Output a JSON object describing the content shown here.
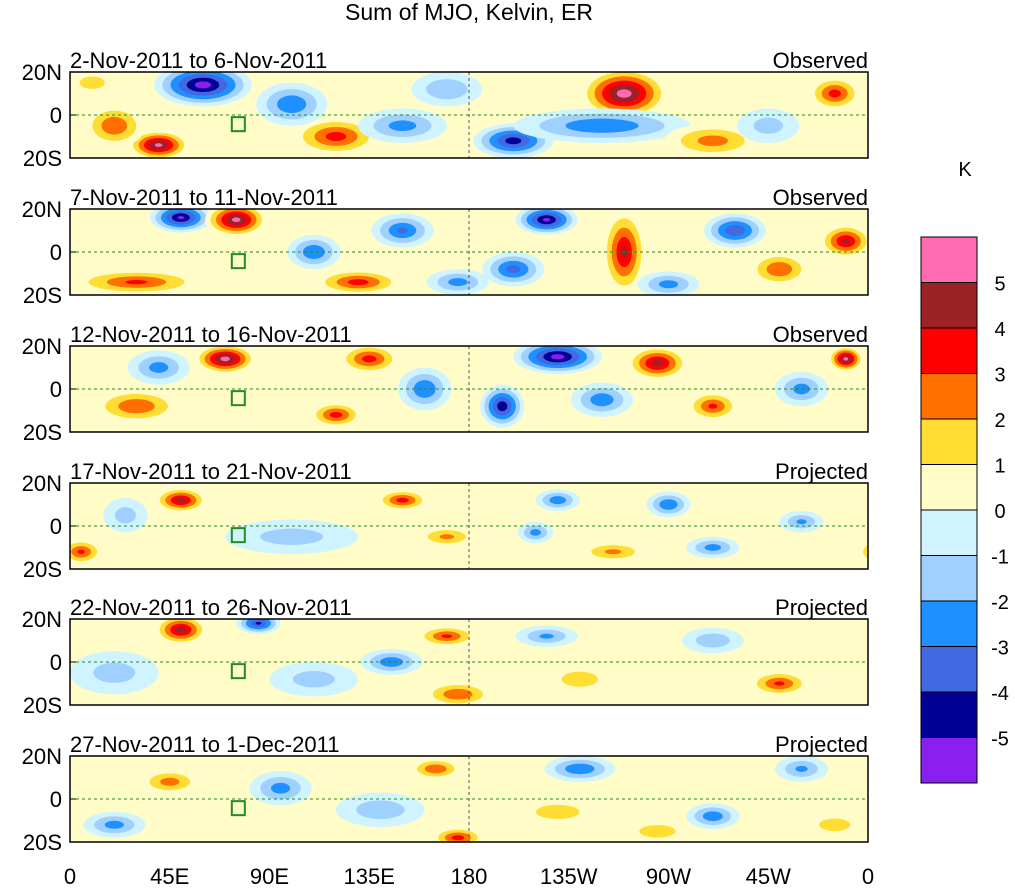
{
  "chart_data": {
    "type": "heatmap",
    "title": "Sum of MJO, Kelvin, ER",
    "colorbar": {
      "unit": "K",
      "levels": [
        "5",
        "4",
        "3",
        "2",
        "1",
        "0",
        "-1",
        "-2",
        "-3",
        "-4",
        "-5"
      ],
      "colors": [
        "#FF6CB4",
        "#9B2226",
        "#FF0000",
        "#FF7000",
        "#FFDD33",
        "#FFFCC8",
        "#D0F4FF",
        "#A0D0FF",
        "#1E90FF",
        "#4169E1",
        "#000096",
        "#8A1FF0"
      ]
    },
    "x_ticks": [
      "0",
      "45E",
      "90E",
      "135E",
      "180",
      "135W",
      "90W",
      "45W",
      "0"
    ],
    "y_ticks": [
      "20N",
      "0",
      "20S"
    ],
    "lon_range": [
      0,
      360
    ],
    "lat_range": [
      -20,
      20
    ],
    "panels": [
      {
        "dates": "2-Nov-2011 to 6-Nov-2011",
        "type": "Observed",
        "base": 0.5,
        "blobs": [
          [
            60,
            14,
            -5.6,
            22,
            10
          ],
          [
            250,
            10,
            5.6,
            20,
            12
          ],
          [
            200,
            -12,
            -4.6,
            18,
            8
          ],
          [
            240,
            -5,
            -3,
            40,
            8
          ],
          [
            120,
            -10,
            3.5,
            20,
            9
          ],
          [
            40,
            -14,
            5.3,
            14,
            7
          ],
          [
            20,
            -5,
            3,
            14,
            10
          ],
          [
            345,
            10,
            3.5,
            12,
            8
          ],
          [
            100,
            5,
            -3,
            16,
            10
          ],
          [
            150,
            -5,
            -2.5,
            20,
            8
          ],
          [
            290,
            -12,
            2.5,
            22,
            8
          ],
          [
            170,
            12,
            -2,
            16,
            8
          ],
          [
            10,
            15,
            1.5,
            12,
            6
          ],
          [
            315,
            -5,
            -1.5,
            14,
            8
          ]
        ]
      },
      {
        "dates": "7-Nov-2011 to 11-Nov-2011",
        "type": "Observed",
        "base": 0.5,
        "blobs": [
          [
            50,
            16,
            -5.2,
            14,
            7
          ],
          [
            75,
            15,
            5.4,
            14,
            8
          ],
          [
            215,
            15,
            -5.3,
            14,
            7
          ],
          [
            250,
            0,
            4.2,
            10,
            20
          ],
          [
            200,
            -8,
            -3.5,
            14,
            8
          ],
          [
            30,
            -14,
            3.2,
            30,
            6
          ],
          [
            130,
            -14,
            3.5,
            20,
            6
          ],
          [
            300,
            10,
            -4,
            14,
            8
          ],
          [
            350,
            5,
            4.2,
            12,
            8
          ],
          [
            110,
            0,
            -3,
            12,
            8
          ],
          [
            150,
            10,
            -3.2,
            14,
            8
          ],
          [
            320,
            -8,
            3,
            14,
            8
          ],
          [
            270,
            -15,
            -2.5,
            14,
            6
          ],
          [
            175,
            -14,
            -2.5,
            14,
            6
          ]
        ]
      },
      {
        "dates": "12-Nov-2011 to 16-Nov-2011",
        "type": "Observed",
        "base": 0.5,
        "blobs": [
          [
            70,
            14,
            5.5,
            14,
            7
          ],
          [
            195,
            -8,
            -4.8,
            10,
            10
          ],
          [
            220,
            15,
            -5.5,
            20,
            8
          ],
          [
            265,
            12,
            4.5,
            14,
            8
          ],
          [
            350,
            14,
            5.4,
            8,
            6
          ],
          [
            135,
            14,
            3.5,
            14,
            7
          ],
          [
            30,
            -8,
            3,
            20,
            8
          ],
          [
            160,
            0,
            -3,
            12,
            10
          ],
          [
            290,
            -8,
            3.2,
            12,
            7
          ],
          [
            120,
            -12,
            3.5,
            12,
            6
          ],
          [
            240,
            -5,
            -2.8,
            14,
            8
          ],
          [
            330,
            0,
            -2.5,
            12,
            8
          ],
          [
            40,
            10,
            -2.5,
            14,
            8
          ]
        ]
      },
      {
        "dates": "17-Nov-2011 to 21-Nov-2011",
        "type": "Projected",
        "base": 0.4,
        "blobs": [
          [
            50,
            12,
            4.4,
            12,
            6
          ],
          [
            150,
            12,
            3.5,
            12,
            5
          ],
          [
            5,
            -12,
            3.2,
            10,
            6
          ],
          [
            220,
            12,
            -2.8,
            10,
            5
          ],
          [
            210,
            -3,
            -2.5,
            8,
            5
          ],
          [
            270,
            10,
            -3,
            10,
            6
          ],
          [
            290,
            -10,
            -2.5,
            12,
            5
          ],
          [
            330,
            2,
            -2.2,
            10,
            5
          ],
          [
            100,
            -5,
            -1.5,
            30,
            8
          ],
          [
            170,
            -5,
            2.2,
            14,
            5
          ],
          [
            245,
            -12,
            2.2,
            16,
            5
          ],
          [
            25,
            5,
            -1.5,
            10,
            8
          ]
        ]
      },
      {
        "dates": "22-Nov-2011 to 26-Nov-2011",
        "type": "Projected",
        "base": 0.4,
        "blobs": [
          [
            50,
            15,
            4.6,
            12,
            7
          ],
          [
            85,
            18,
            -4.2,
            10,
            5
          ],
          [
            170,
            12,
            3.2,
            14,
            5
          ],
          [
            175,
            -15,
            3,
            16,
            6
          ],
          [
            320,
            -10,
            3.2,
            14,
            6
          ],
          [
            230,
            -8,
            2,
            14,
            6
          ],
          [
            145,
            0,
            -2.8,
            14,
            6
          ],
          [
            215,
            12,
            -2.2,
            14,
            5
          ],
          [
            290,
            10,
            -1.8,
            14,
            6
          ],
          [
            20,
            -5,
            -1.5,
            20,
            10
          ],
          [
            110,
            -8,
            -1.5,
            20,
            8
          ]
        ]
      },
      {
        "dates": "27-Nov-2011 to 1-Dec-2011",
        "type": "Projected",
        "base": 0.4,
        "blobs": [
          [
            45,
            8,
            2.5,
            14,
            6
          ],
          [
            175,
            -18,
            3.5,
            12,
            5
          ],
          [
            165,
            14,
            3,
            12,
            5
          ],
          [
            230,
            14,
            -3,
            16,
            6
          ],
          [
            290,
            -8,
            -2.8,
            12,
            6
          ],
          [
            330,
            14,
            -2.2,
            12,
            6
          ],
          [
            220,
            -6,
            1.8,
            18,
            6
          ],
          [
            20,
            -12,
            -2.5,
            14,
            6
          ],
          [
            95,
            5,
            -2.5,
            14,
            8
          ],
          [
            140,
            -5,
            -1.8,
            20,
            8
          ],
          [
            345,
            -12,
            2,
            12,
            5
          ],
          [
            265,
            -15,
            2,
            14,
            5
          ]
        ]
      }
    ]
  }
}
